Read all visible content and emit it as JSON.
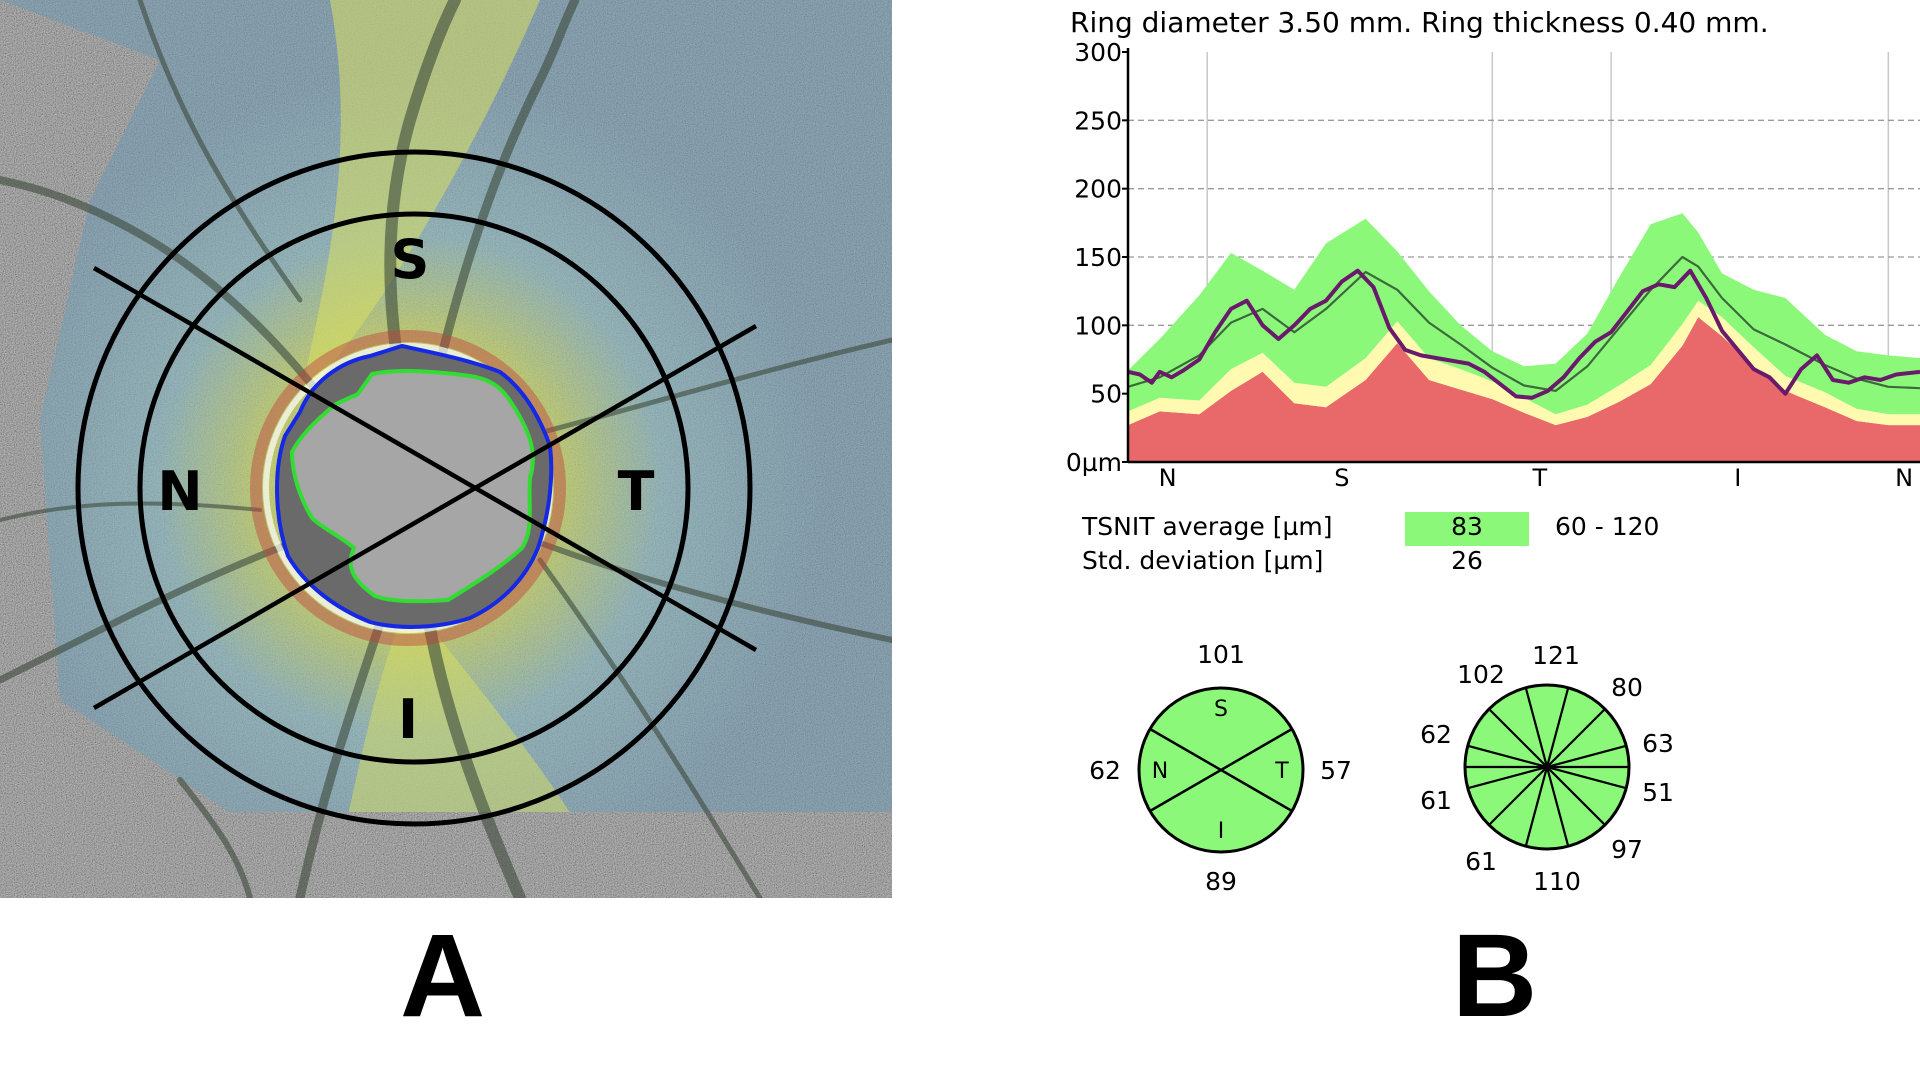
{
  "panel_a": {
    "label": "A",
    "quadrants": {
      "superior": "S",
      "nasal": "N",
      "temporal": "T",
      "inferior": "I"
    }
  },
  "panel_b": {
    "label": "B",
    "ring_caption": "Ring diameter 3.50 mm. Ring thickness 0.40 mm.",
    "tsnit_average": {
      "label": "TSNIT average [µm]",
      "value": "83",
      "range": "60 - 120"
    },
    "std_deviation": {
      "label": "Std. deviation [µm]",
      "value": "26"
    },
    "quadrant_diagram": {
      "inner_labels": {
        "superior": "S",
        "nasal": "N",
        "temporal": "T",
        "inferior": "I"
      },
      "values": {
        "superior": "101",
        "nasal": "62",
        "temporal": "57",
        "inferior": "89"
      },
      "fill_color": "#8cf87a"
    },
    "clock_diagram": {
      "values": [
        "121",
        "80",
        "63",
        "51",
        "97",
        "110",
        "61",
        "61",
        "62",
        "102"
      ],
      "fill_color": "#8cf87a"
    }
  },
  "colors": {
    "normal_green": "#8cf87a",
    "borderline_yellow": "#fffab0",
    "outside_red": "#e9686a",
    "measured_line": "#6a1a6a",
    "normative_line": "#3c6a3c",
    "disc_outline_blue": "#1428e6",
    "cup_outline_green": "#32dc32"
  },
  "chart_data": {
    "type": "area",
    "ylim": [
      0,
      300
    ],
    "y_ticks": [
      "0µm",
      "50",
      "100",
      "150",
      "200",
      "250",
      "300"
    ],
    "x_sector_labels": [
      "N",
      "S",
      "T",
      "I",
      "N"
    ],
    "x_range": [
      0,
      100
    ],
    "bands": [
      {
        "name": "outside normal limits",
        "color": "#e9686a",
        "x": [
          0,
          4,
          9,
          13,
          17,
          21,
          25,
          30,
          34,
          38,
          42,
          46,
          50,
          54,
          58,
          62,
          66,
          70,
          72,
          75,
          79,
          83,
          88,
          92,
          96,
          100
        ],
        "lower": [
          0,
          0,
          0,
          0,
          0,
          0,
          0,
          0,
          0,
          0,
          0,
          0,
          0,
          0,
          0,
          0,
          0,
          0,
          0,
          0,
          0,
          0,
          0,
          0,
          0,
          0
        ],
        "upper": [
          27,
          37,
          35,
          52,
          66,
          43,
          40,
          60,
          87,
          60,
          53,
          46,
          36,
          27,
          33,
          44,
          57,
          85,
          106,
          92,
          70,
          52,
          40,
          30,
          27,
          27
        ]
      },
      {
        "name": "borderline",
        "color": "#fffab0",
        "x": [
          0,
          4,
          9,
          13,
          17,
          21,
          25,
          30,
          34,
          38,
          42,
          46,
          50,
          54,
          58,
          62,
          66,
          70,
          72,
          75,
          79,
          83,
          88,
          92,
          96,
          100
        ],
        "lower": [
          27,
          37,
          35,
          52,
          66,
          43,
          40,
          60,
          87,
          60,
          53,
          46,
          36,
          27,
          33,
          44,
          57,
          85,
          106,
          92,
          70,
          52,
          40,
          30,
          27,
          27
        ],
        "upper": [
          37,
          47,
          45,
          68,
          80,
          58,
          55,
          76,
          103,
          76,
          68,
          59,
          47,
          35,
          42,
          56,
          71,
          101,
          118,
          106,
          84,
          63,
          51,
          39,
          35,
          35
        ]
      },
      {
        "name": "within normal limits",
        "color": "#8cf87a",
        "x": [
          0,
          4,
          9,
          13,
          17,
          21,
          25,
          30,
          34,
          38,
          42,
          46,
          50,
          54,
          58,
          62,
          66,
          70,
          72,
          75,
          79,
          83,
          88,
          92,
          96,
          100
        ],
        "lower": [
          37,
          47,
          45,
          68,
          80,
          58,
          55,
          76,
          103,
          76,
          68,
          59,
          47,
          35,
          42,
          56,
          71,
          101,
          118,
          106,
          84,
          63,
          51,
          39,
          35,
          35
        ],
        "upper": [
          67,
          90,
          122,
          153,
          140,
          126,
          160,
          178,
          154,
          125,
          100,
          81,
          70,
          72,
          94,
          135,
          174,
          182,
          168,
          138,
          126,
          120,
          93,
          81,
          78,
          76
        ]
      }
    ],
    "series": [
      {
        "role": "normative_mean",
        "color": "#3c6a3c",
        "x": [
          0,
          4,
          9,
          13,
          17,
          21,
          25,
          30,
          34,
          38,
          42,
          46,
          50,
          54,
          58,
          62,
          66,
          70,
          72,
          75,
          79,
          83,
          88,
          92,
          96,
          100
        ],
        "y": [
          55,
          62,
          78,
          102,
          112,
          95,
          112,
          139,
          126,
          102,
          86,
          69,
          56,
          52,
          70,
          98,
          126,
          150,
          143,
          120,
          97,
          86,
          71,
          61,
          55,
          54
        ]
      },
      {
        "role": "measured",
        "color": "#6a1a6a",
        "x": [
          0,
          1.5,
          3,
          4,
          5.5,
          7,
          9,
          11,
          13,
          15,
          17,
          19,
          21,
          23,
          25,
          27,
          29,
          31,
          33,
          35,
          37,
          39,
          41,
          43,
          45,
          47,
          49,
          51,
          53,
          55,
          57,
          59,
          61,
          63,
          65,
          67,
          69,
          71,
          73,
          75,
          77,
          79,
          81,
          83,
          85,
          87,
          89,
          91,
          93,
          95,
          97,
          100
        ],
        "y": [
          66,
          64,
          58,
          66,
          62,
          67,
          75,
          95,
          112,
          118,
          100,
          90,
          100,
          112,
          118,
          132,
          140,
          128,
          98,
          82,
          78,
          76,
          74,
          72,
          66,
          57,
          48,
          47,
          52,
          62,
          76,
          88,
          95,
          110,
          125,
          130,
          128,
          140,
          120,
          96,
          82,
          68,
          62,
          50,
          68,
          78,
          60,
          58,
          62,
          60,
          64,
          66
        ]
      }
    ]
  }
}
